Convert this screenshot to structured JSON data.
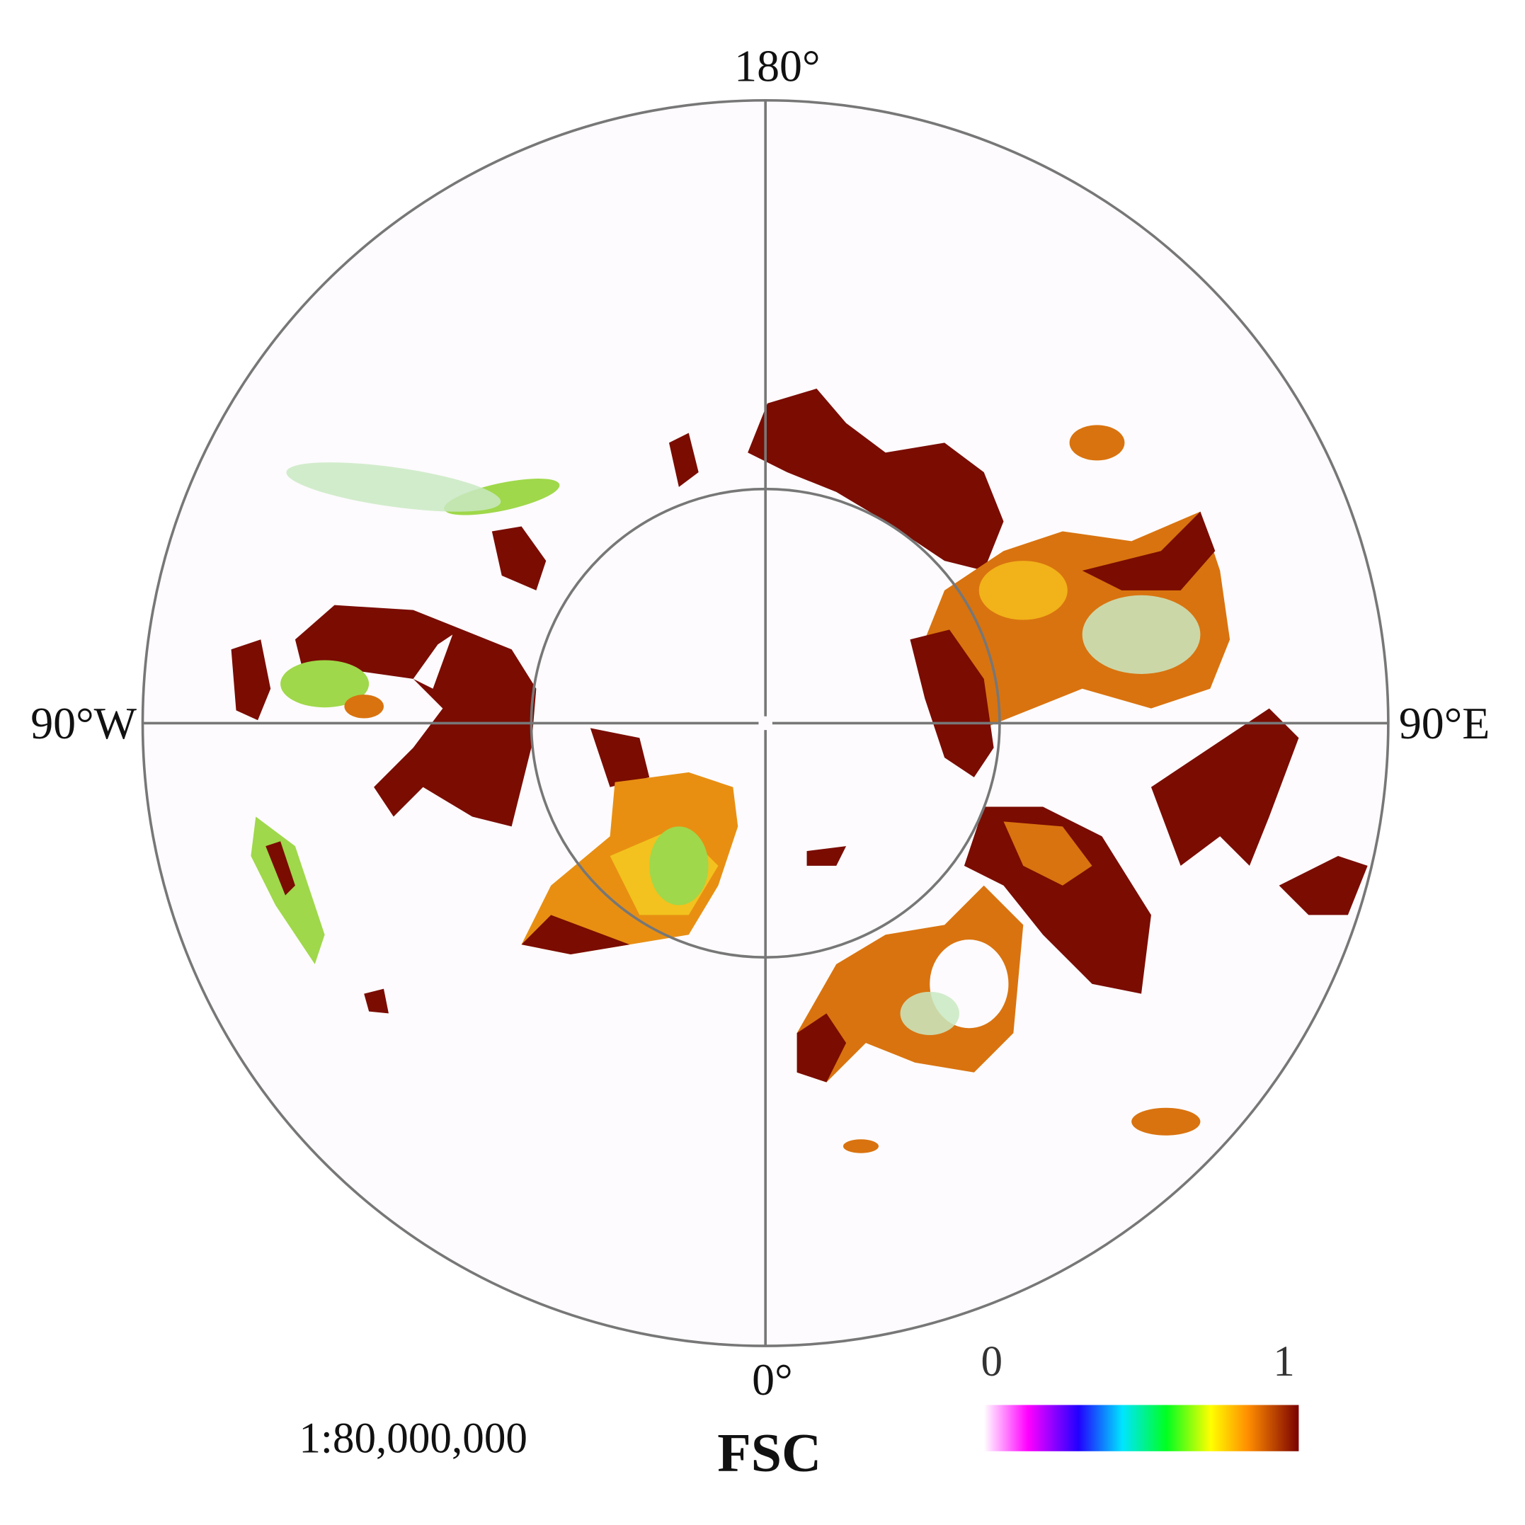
{
  "labels": {
    "top": "180°",
    "left": "90°W",
    "right": "90°E",
    "bottom": "0°"
  },
  "scale": "1:80,000,000",
  "legend": {
    "title": "FSC",
    "ticks": [
      0,
      1
    ]
  }
}
